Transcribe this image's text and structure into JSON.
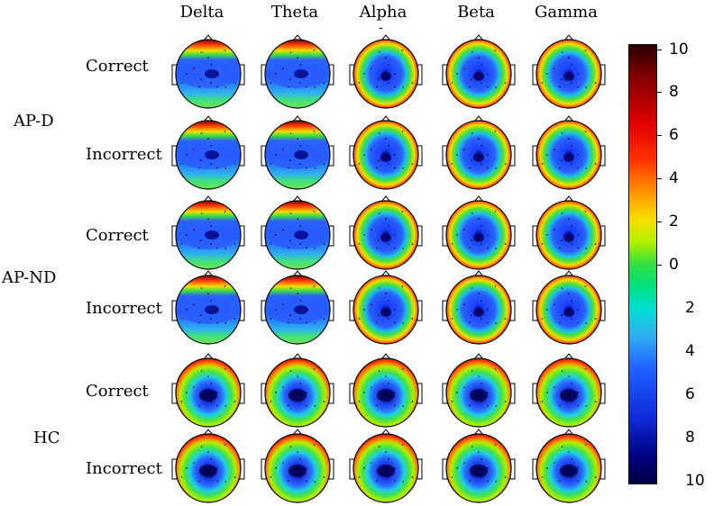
{
  "columns": [
    "Delta",
    "Theta",
    "Alpha",
    "Beta",
    "Gamma"
  ],
  "groups": [
    "AP-D",
    "AP-ND",
    "HC"
  ],
  "conditions": [
    "Correct",
    "Incorrect",
    "Correct",
    "Incorrect",
    "Correct",
    "Incorrect"
  ],
  "colorbar": {
    "labels": [
      "10",
      "8",
      "6",
      "4",
      "2",
      "0",
      "2",
      "4",
      "6",
      "8",
      "10"
    ]
  },
  "alpha_marker": "-",
  "maps": [
    [
      "frontal-temporal-band",
      "frontal-temporal-band",
      "ring-center",
      "ring-center",
      "ring-center"
    ],
    [
      "frontal-temporal-band",
      "frontal-temporal-band",
      "ring-center",
      "ring-center",
      "ring-center"
    ],
    [
      "frontal-temporal-band",
      "frontal-temporal-band",
      "ring-center",
      "ring-center",
      "ring-center"
    ],
    [
      "frontal-temporal-band",
      "frontal-temporal-band",
      "ring-center",
      "ring-center",
      "ring-center"
    ],
    [
      "central-blob",
      "central-blob",
      "central-blob",
      "central-blob",
      "central-blob"
    ],
    [
      "central-blob",
      "central-blob",
      "central-blob",
      "central-blob",
      "central-blob"
    ]
  ]
}
